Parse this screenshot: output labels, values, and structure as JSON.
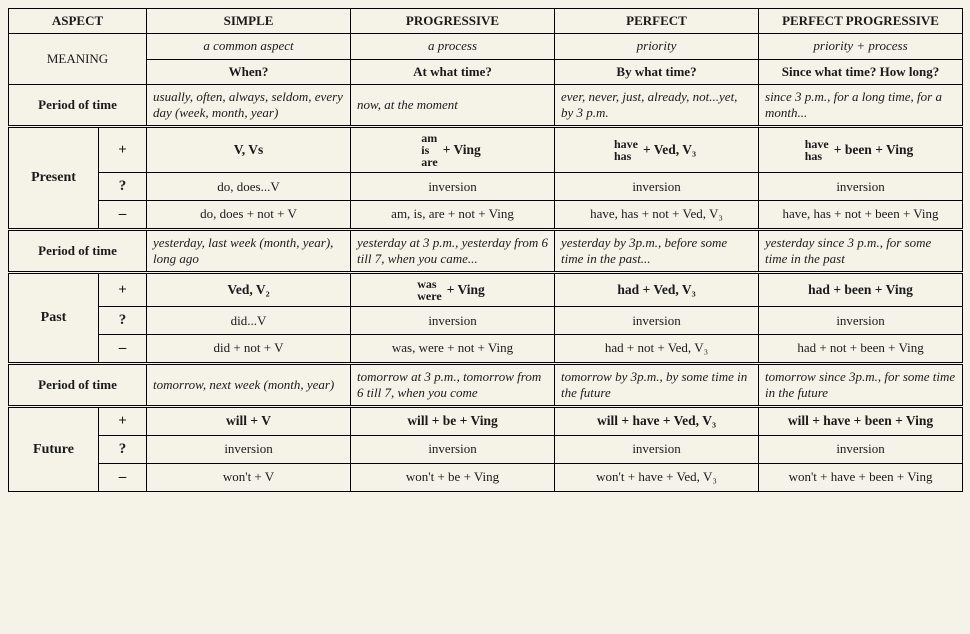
{
  "headers": {
    "aspect": "ASPECT",
    "simple": "SIMPLE",
    "progressive": "PROGRESSIVE",
    "perfect": "PERFECT",
    "perfprog": "PERFECT PROGRESSIVE"
  },
  "meaning": {
    "label": "MEANING",
    "m_simple": "a common aspect",
    "m_progressive": "a process",
    "m_perfect": "priority",
    "m_perfprog": "priority + process",
    "q_simple": "When?",
    "q_progressive": "At what time?",
    "q_perfect": "By what time?",
    "q_perfprog": "Since what time? How long?"
  },
  "period_label": "Period of time",
  "present": {
    "label": "Present",
    "period": {
      "simple": "usually, often, always, seldom, every day (week, month, year)",
      "progressive": "now, at the moment",
      "perfect": "ever, never, just, already, not...yet, by 3 p.m.",
      "perfprog": "since 3 p.m., for a long time, for a month..."
    },
    "pos": {
      "simple": "V, Vs",
      "prog_aux1": "am",
      "prog_aux2": "is",
      "prog_aux3": "are",
      "prog_tail": "+ Ving",
      "perf_aux1": "have",
      "perf_aux2": "has",
      "perf_tail": "+ Ved, V₃",
      "pp_aux1": "have",
      "pp_aux2": "has",
      "pp_tail": "+ been + Ving"
    },
    "q": {
      "simple": "do, does...V",
      "progressive": "inversion",
      "perfect": "inversion",
      "perfprog": "inversion"
    },
    "neg": {
      "simple": "do, does + not + V",
      "progressive": "am, is, are + not + Ving",
      "perfect": "have, has + not + Ved, V₃",
      "perfprog": "have, has + not + been + Ving"
    }
  },
  "past": {
    "label": "Past",
    "period": {
      "simple": "yesterday, last week (month, year), long ago",
      "progressive": "yesterday at 3 p.m., yesterday from 6 till 7, when you came...",
      "perfect": "yesterday by 3p.m., before some time in the past...",
      "perfprog": "yesterday since 3 p.m., for some time in the past"
    },
    "pos": {
      "simple": "Ved, V₂",
      "prog_aux1": "was",
      "prog_aux2": "were",
      "prog_tail": "+ Ving",
      "perfect": "had + Ved, V₃",
      "perfprog": "had + been + Ving"
    },
    "q": {
      "simple": "did...V",
      "progressive": "inversion",
      "perfect": "inversion",
      "perfprog": "inversion"
    },
    "neg": {
      "simple": "did + not + V",
      "progressive": "was, were + not + Ving",
      "perfect": "had + not + Ved, V₃",
      "perfprog": "had + not + been + Ving"
    }
  },
  "future": {
    "label": "Future",
    "period": {
      "simple": "tomorrow, next week (month, year)",
      "progressive": "tomorrow at 3 p.m., tomorrow from 6 till 7, when you come",
      "perfect": "tomorrow by 3p.m., by some time in the future",
      "perfprog": "tomorrow since 3p.m., for some time in the future"
    },
    "pos": {
      "simple": "will + V",
      "progressive": "will + be + Ving",
      "perfect": "will + have + Ved, V₃",
      "perfprog": "will + have + been + Ving"
    },
    "q": {
      "simple": "inversion",
      "progressive": "inversion",
      "perfect": "inversion",
      "perfprog": "inversion"
    },
    "neg": {
      "simple": "won't + V",
      "progressive": "won't + be + Ving",
      "perfect": "won't + have + Ved, V₃",
      "perfprog": "won't + have + been + Ving"
    }
  },
  "signs": {
    "pos": "+",
    "q": "?",
    "neg": "–"
  }
}
